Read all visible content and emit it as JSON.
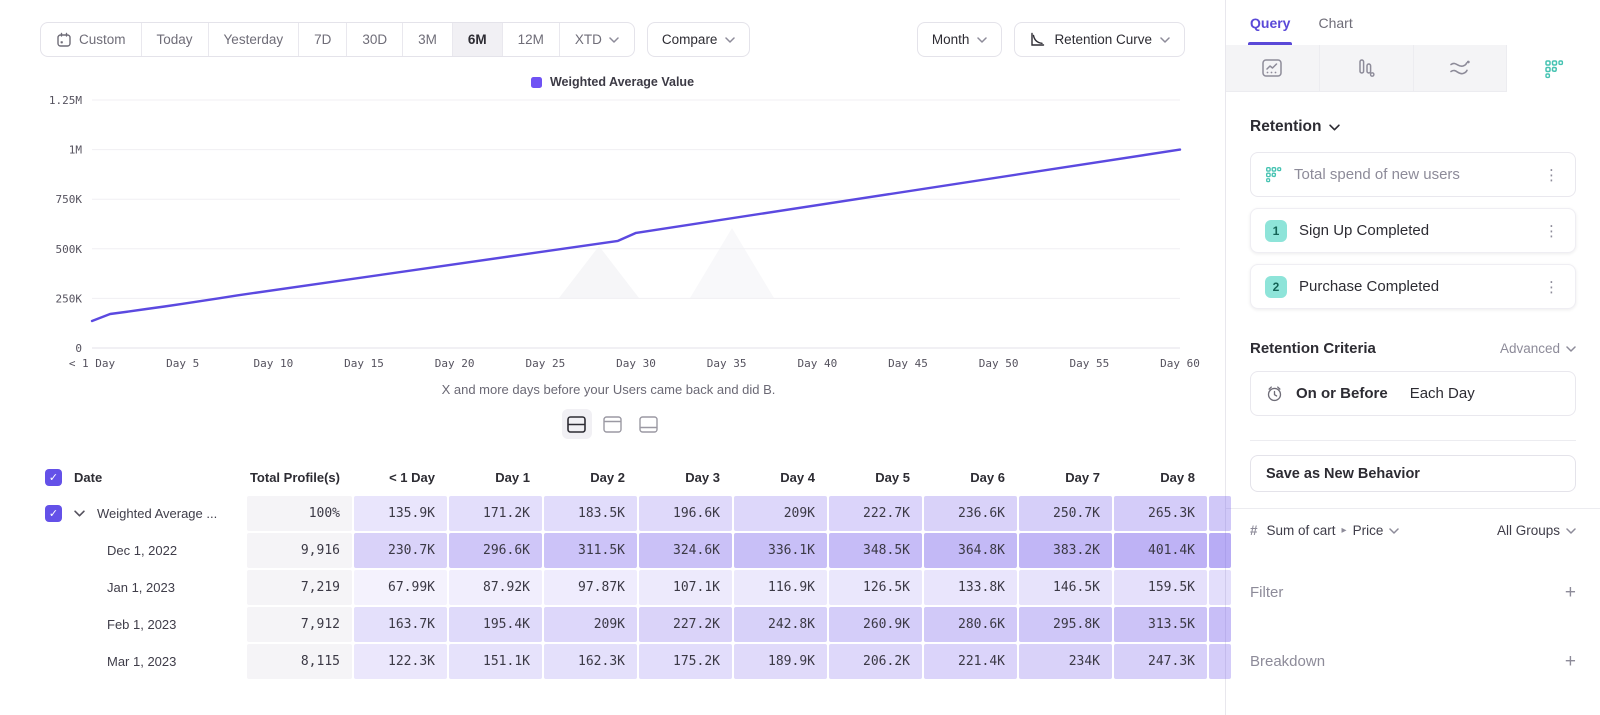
{
  "toolbar": {
    "ranges": [
      "Custom",
      "Today",
      "Yesterday",
      "7D",
      "30D",
      "3M",
      "6M",
      "12M",
      "XTD"
    ],
    "selected_range": "6M",
    "compare_label": "Compare",
    "granularity_label": "Month",
    "chart_type_label": "Retention Curve"
  },
  "chart_data": {
    "type": "line",
    "legend": [
      "Weighted Average Value"
    ],
    "series": [
      {
        "name": "Weighted Average Value",
        "color": "#5b49e0",
        "points": [
          [
            0,
            135900
          ],
          [
            1,
            171200
          ],
          [
            2,
            183500
          ],
          [
            3,
            196600
          ],
          [
            4,
            209000
          ],
          [
            5,
            222700
          ],
          [
            6,
            236600
          ],
          [
            7,
            250700
          ],
          [
            8,
            265300
          ],
          [
            29,
            540000
          ],
          [
            30,
            580000
          ],
          [
            60,
            1000000
          ]
        ]
      }
    ],
    "x_ticks": [
      "< 1 Day",
      "Day 5",
      "Day 10",
      "Day 15",
      "Day 20",
      "Day 25",
      "Day 30",
      "Day 35",
      "Day 40",
      "Day 45",
      "Day 50",
      "Day 55",
      "Day 60"
    ],
    "x_tick_days": [
      0,
      5,
      10,
      15,
      20,
      25,
      30,
      35,
      40,
      45,
      50,
      55,
      60
    ],
    "y_ticks": [
      "0",
      "250K",
      "500K",
      "750K",
      "1M",
      "1.25M"
    ],
    "y_tick_values": [
      0,
      250000,
      500000,
      750000,
      1000000,
      1250000
    ],
    "xlim": [
      0,
      60
    ],
    "ylim": [
      0,
      1250000
    ],
    "grid": true,
    "legend_position": "top-center",
    "xlabel": "X and more days before your Users came back and did B."
  },
  "table": {
    "headers": [
      "Date",
      "Total Profile(s)",
      "< 1 Day",
      "Day 1",
      "Day 2",
      "Day 3",
      "Day 4",
      "Day 5",
      "Day 6",
      "Day 7",
      "Day 8"
    ],
    "rows": [
      {
        "label": "Weighted Average ...",
        "checked": true,
        "expandable": true,
        "total": "100%",
        "values": [
          "135.9K",
          "171.2K",
          "183.5K",
          "196.6K",
          "209K",
          "222.7K",
          "236.6K",
          "250.7K",
          "265.3K"
        ],
        "numeric": [
          135900,
          171200,
          183500,
          196600,
          209000,
          222700,
          236600,
          250700,
          265300
        ]
      },
      {
        "label": "Dec 1, 2022",
        "total": "9,916",
        "values": [
          "230.7K",
          "296.6K",
          "311.5K",
          "324.6K",
          "336.1K",
          "348.5K",
          "364.8K",
          "383.2K",
          "401.4K"
        ],
        "numeric": [
          230700,
          296600,
          311500,
          324600,
          336100,
          348500,
          364800,
          383200,
          401400
        ]
      },
      {
        "label": "Jan 1, 2023",
        "total": "7,219",
        "values": [
          "67.99K",
          "87.92K",
          "97.87K",
          "107.1K",
          "116.9K",
          "126.5K",
          "133.8K",
          "146.5K",
          "159.5K"
        ],
        "numeric": [
          67990,
          87920,
          97870,
          107100,
          116900,
          126500,
          133800,
          146500,
          159500
        ]
      },
      {
        "label": "Feb 1, 2023",
        "total": "7,912",
        "values": [
          "163.7K",
          "195.4K",
          "209K",
          "227.2K",
          "242.8K",
          "260.9K",
          "280.6K",
          "295.8K",
          "313.5K"
        ],
        "numeric": [
          163700,
          195400,
          209000,
          227200,
          242800,
          260900,
          280600,
          295800,
          313500
        ]
      },
      {
        "label": "Mar 1, 2023",
        "total": "8,115",
        "values": [
          "122.3K",
          "151.1K",
          "162.3K",
          "175.2K",
          "189.9K",
          "206.2K",
          "221.4K",
          "234K",
          "247.3K"
        ],
        "numeric": [
          122300,
          151100,
          162300,
          175200,
          189900,
          206200,
          221400,
          234000,
          247300
        ]
      }
    ]
  },
  "query_panel": {
    "tabs": [
      "Query",
      "Chart"
    ],
    "active_tab": "Query",
    "report_type": "Retention",
    "behavior_label": "Total spend of new users",
    "steps": [
      {
        "num": "1",
        "label": "Sign Up Completed"
      },
      {
        "num": "2",
        "label": "Purchase Completed"
      }
    ],
    "criteria_title": "Retention Criteria",
    "criteria_mode": "Advanced",
    "criteria_condition": "On or Before",
    "criteria_window": "Each Day",
    "save_button_label": "Save as New Behavior",
    "measure_prefix": "#",
    "measure_event": "Sum of cart",
    "measure_property": "Price",
    "groups_label": "All Groups",
    "sections": [
      {
        "label": "Filter"
      },
      {
        "label": "Breakdown"
      }
    ]
  },
  "colors": {
    "accent_purple": "#6451e8",
    "line_purple": "#5b49e0",
    "cell_purple_base": "#7158ea",
    "teal_badge": "#8ee4d9",
    "teal_icon": "#46c3b2",
    "tab_active": "#5a49d8"
  }
}
